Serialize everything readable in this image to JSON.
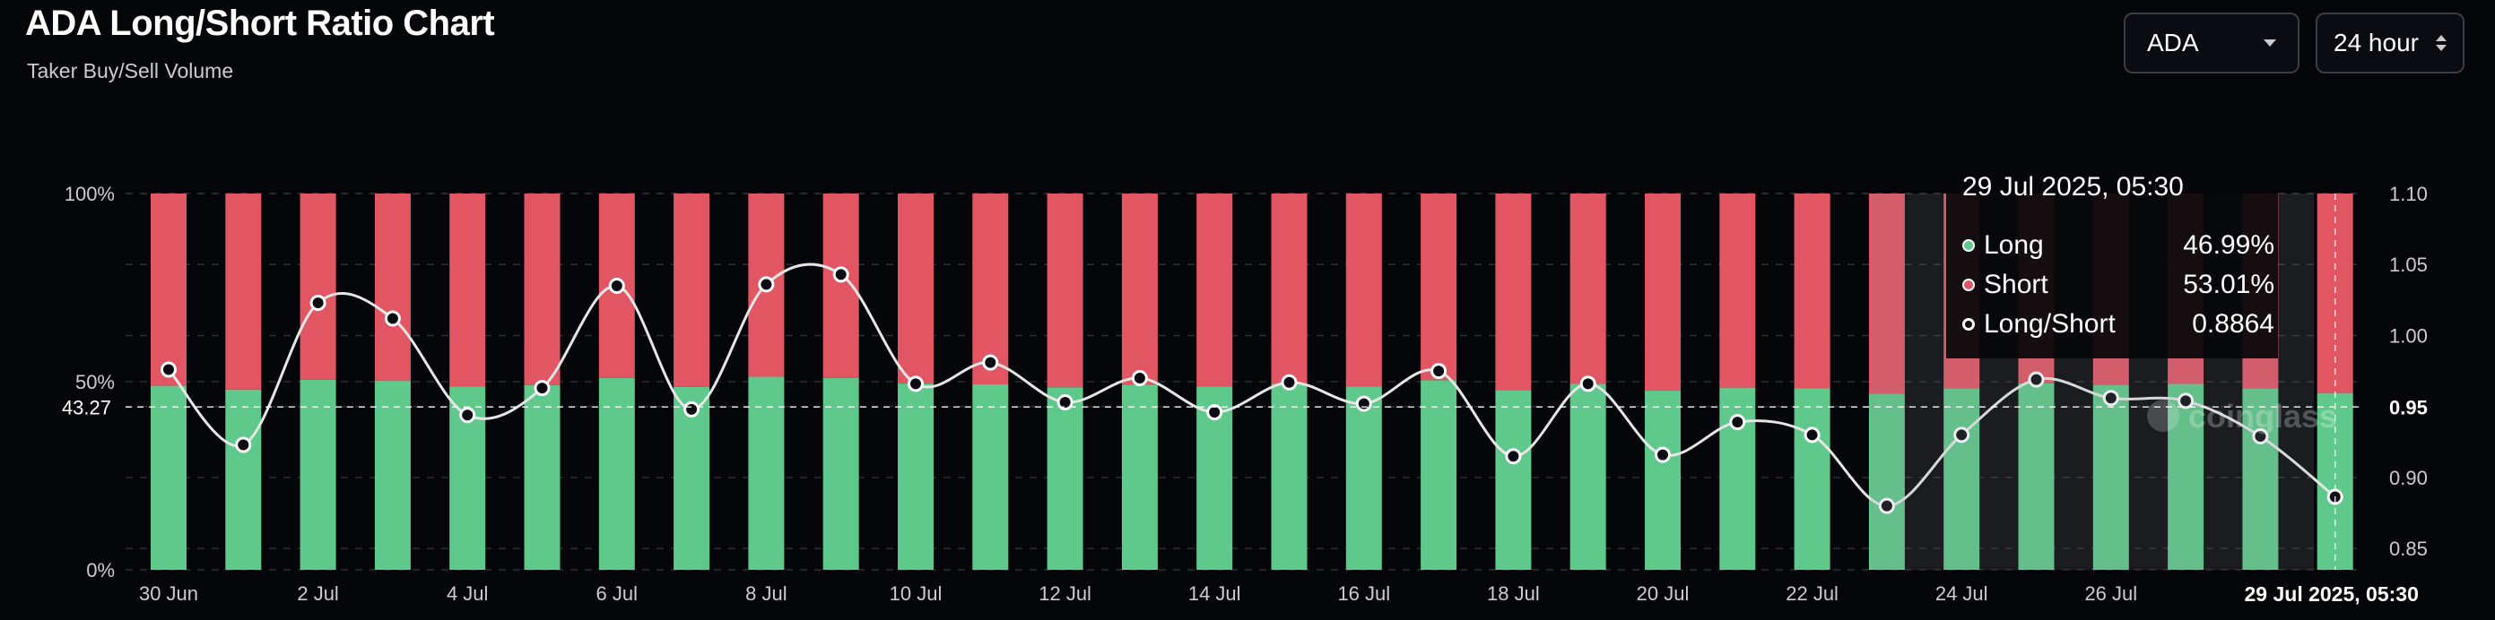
{
  "header": {
    "title": "ADA Long/Short Ratio Chart",
    "subtitle": "Taker Buy/Sell Volume"
  },
  "controls": {
    "asset": "ADA",
    "interval": "24 hour"
  },
  "watermark": "coinglass",
  "tooltip": {
    "title": "29 Jul 2025, 05:30",
    "long_label": "Long",
    "long_value": "46.99%",
    "short_label": "Short",
    "short_value": "53.01%",
    "ratio_label": "Long/Short",
    "ratio_value": "0.8864"
  },
  "crosshair": {
    "left_value": "43.27",
    "right_value": "0.95",
    "date_label": "29 Jul 2025, 05:30"
  },
  "colors": {
    "long": "#5ec98a",
    "short": "#e25563",
    "line": "#e6e6e6",
    "background": "#05060a"
  },
  "chart_data": {
    "type": "bar",
    "stacked": true,
    "categories": [
      "30 Jun",
      "1 Jul",
      "2 Jul",
      "3 Jul",
      "4 Jul",
      "5 Jul",
      "6 Jul",
      "7 Jul",
      "8 Jul",
      "9 Jul",
      "10 Jul",
      "11 Jul",
      "12 Jul",
      "13 Jul",
      "14 Jul",
      "15 Jul",
      "16 Jul",
      "17 Jul",
      "18 Jul",
      "19 Jul",
      "20 Jul",
      "21 Jul",
      "22 Jul",
      "23 Jul",
      "24 Jul",
      "25 Jul",
      "26 Jul",
      "27 Jul",
      "28 Jul",
      "29 Jul"
    ],
    "x_tick_labels": [
      "30 Jun",
      "2 Jul",
      "4 Jul",
      "6 Jul",
      "8 Jul",
      "10 Jul",
      "12 Jul",
      "14 Jul",
      "16 Jul",
      "18 Jul",
      "20 Jul",
      "22 Jul",
      "24 Jul",
      "26 Jul"
    ],
    "series": [
      {
        "name": "Long",
        "axis": "left",
        "values": [
          48.9,
          47.9,
          50.5,
          50.3,
          48.7,
          49.1,
          51.0,
          48.6,
          51.3,
          51.0,
          49.5,
          49.3,
          48.5,
          49.2,
          48.7,
          49.4,
          48.7,
          50.4,
          47.8,
          49.4,
          47.6,
          48.4,
          48.3,
          46.8,
          48.2,
          49.6,
          49.2,
          49.4,
          48.2,
          46.99
        ]
      },
      {
        "name": "Short",
        "axis": "left",
        "values": [
          51.1,
          52.1,
          49.5,
          49.7,
          51.3,
          50.9,
          49.0,
          51.4,
          48.7,
          49.0,
          50.5,
          50.7,
          51.5,
          50.8,
          51.3,
          50.6,
          51.3,
          49.6,
          52.2,
          50.6,
          52.4,
          51.6,
          51.7,
          53.2,
          51.8,
          50.4,
          50.8,
          50.6,
          51.8,
          53.01
        ]
      },
      {
        "name": "Long/Short",
        "type": "line",
        "axis": "right",
        "values": [
          0.976,
          0.923,
          1.023,
          1.012,
          0.944,
          0.963,
          1.035,
          0.948,
          1.036,
          1.043,
          0.966,
          0.981,
          0.953,
          0.97,
          0.946,
          0.967,
          0.952,
          0.975,
          0.915,
          0.966,
          0.916,
          0.939,
          0.93,
          0.88,
          0.93,
          0.969,
          0.956,
          0.954,
          0.929,
          0.8864
        ]
      }
    ],
    "y_left": {
      "ticks": [
        "0%",
        "50%",
        "100%"
      ],
      "ylim": [
        0,
        100
      ]
    },
    "y_right": {
      "ticks": [
        "0.85",
        "0.90",
        "0.95",
        "1.00",
        "1.05",
        "1.10"
      ],
      "ylim": [
        0.835,
        1.1
      ]
    },
    "highlighted_category": "29 Jul",
    "grid": true,
    "legend": "tooltip"
  }
}
